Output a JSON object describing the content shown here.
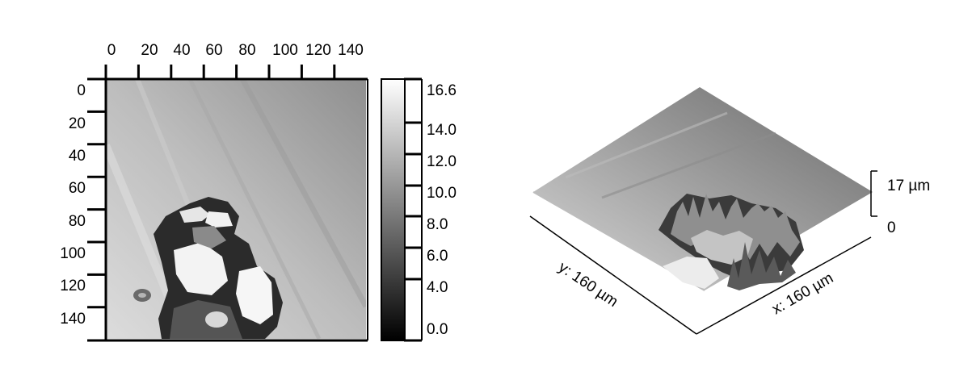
{
  "heatmap": {
    "x_ticks": [
      "0",
      "20",
      "40",
      "60",
      "80",
      "100",
      "120",
      "140"
    ],
    "y_ticks": [
      "0",
      "20",
      "40",
      "60",
      "80",
      "100",
      "120",
      "140"
    ]
  },
  "colorbar": {
    "ticks": [
      "16.6",
      "14.0",
      "12.0",
      "10.0",
      "8.0",
      "6.0",
      "4.0",
      "0.0"
    ],
    "gradient": [
      "#000000",
      "#ffffff"
    ]
  },
  "surface": {
    "x_axis_label": "x: 160  µm",
    "y_axis_label": "y: 160  µm",
    "z_top_label": "17  µm",
    "z_bottom_label": "0"
  }
}
